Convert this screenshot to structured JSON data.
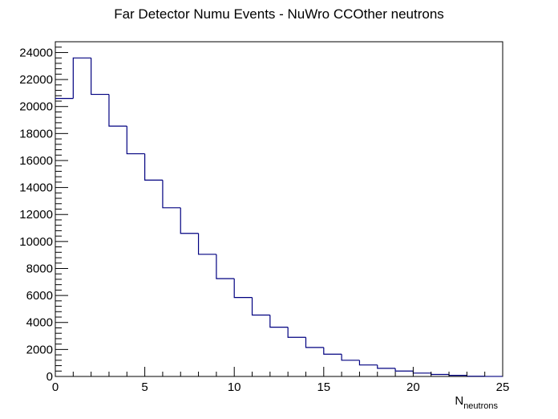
{
  "chart_data": {
    "type": "histogram",
    "title": "Far Detector Numu Events - NuWro CCOther neutrons",
    "xlabel": {
      "main": "N",
      "subscript": "neutrons"
    },
    "ylabel": "",
    "xlim": [
      0,
      25
    ],
    "ylim": [
      0,
      24800
    ],
    "xticks": [
      0,
      5,
      10,
      15,
      20,
      25
    ],
    "yticks": [
      0,
      2000,
      4000,
      6000,
      8000,
      10000,
      12000,
      14000,
      16000,
      18000,
      20000,
      22000,
      24000
    ],
    "bin_width": 1,
    "bin_edges": [
      0,
      1,
      2,
      3,
      4,
      5,
      6,
      7,
      8,
      9,
      10,
      11,
      12,
      13,
      14,
      15,
      16,
      17,
      18,
      19,
      20,
      21,
      22,
      23,
      24,
      25
    ],
    "values": [
      20600,
      23600,
      20900,
      18550,
      16500,
      14550,
      12500,
      10600,
      9050,
      7250,
      5850,
      4550,
      3650,
      2900,
      2150,
      1650,
      1200,
      850,
      600,
      400,
      250,
      150,
      80,
      20,
      5
    ],
    "line_color": "#000080",
    "grid": false,
    "legend": "none"
  }
}
